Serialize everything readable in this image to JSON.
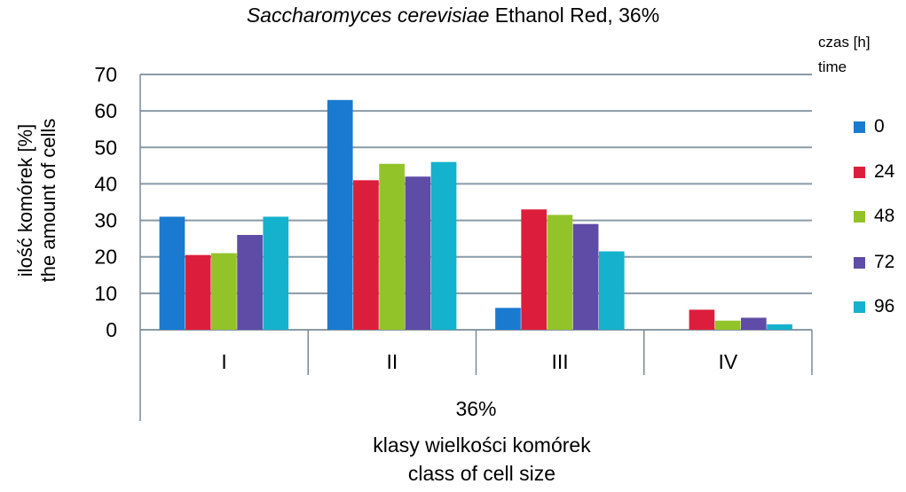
{
  "title": {
    "italic": "Saccharomyces cerevisiae",
    "rest": " Ethanol Red,  36%"
  },
  "y_axis_label": {
    "line1": "ilość komórek [%]",
    "line2": "the amount of cells"
  },
  "x_axis_label": {
    "line1": "klasy wielkości komórek",
    "line2": "class of cell size"
  },
  "legend": {
    "title_line1": "czas [h]",
    "title_line2": "time"
  },
  "colors": {
    "s0": "#1a7ad0",
    "s24": "#dc1e3c",
    "s48": "#92c42a",
    "s72": "#5e4ca6",
    "s96": "#14b2cc"
  },
  "chart_data": {
    "type": "bar",
    "title": "Saccharomyces cerevisiae Ethanol Red,  36%",
    "group_label": "36%",
    "categories": [
      "I",
      "II",
      "III",
      "IV"
    ],
    "series": [
      {
        "name": "0",
        "values": [
          31,
          63,
          6,
          0
        ]
      },
      {
        "name": "24",
        "values": [
          20.5,
          41,
          33,
          5.5
        ]
      },
      {
        "name": "48",
        "values": [
          21,
          45.5,
          31.5,
          2.5
        ]
      },
      {
        "name": "72",
        "values": [
          26,
          42,
          29,
          3.3
        ]
      },
      {
        "name": "96",
        "values": [
          31,
          46,
          21.5,
          1.5
        ]
      }
    ],
    "xlabel": "klasy wielkości komórek / class of cell size",
    "ylabel": "ilość komórek [%] / the amount of cells",
    "ylim": [
      0,
      70
    ],
    "yticks": [
      0,
      10,
      20,
      30,
      40,
      50,
      60,
      70
    ],
    "grid": true,
    "legend_position": "right"
  }
}
